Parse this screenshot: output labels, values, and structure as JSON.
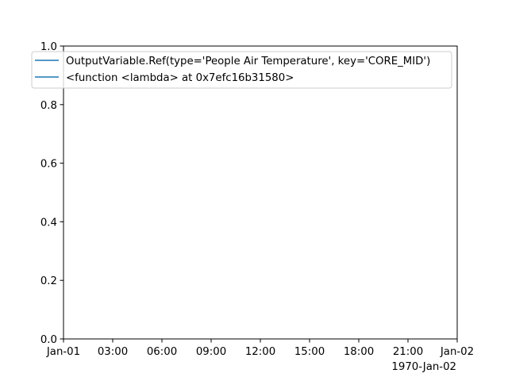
{
  "chart_data": {
    "type": "line",
    "title": "",
    "xlabel": "",
    "ylabel": "",
    "x_ticks": [
      "Jan-01",
      "03:00",
      "06:00",
      "09:00",
      "12:00",
      "15:00",
      "18:00",
      "21:00",
      "Jan-02"
    ],
    "x_offset_label": "1970-Jan-02",
    "xlim": [
      "1970-01-01 00:00",
      "1970-01-02 00:00"
    ],
    "ylim": [
      0.0,
      1.0
    ],
    "y_ticks": [
      "0.0",
      "0.2",
      "0.4",
      "0.6",
      "0.8",
      "1.0"
    ],
    "y_tick_values": [
      0.0,
      0.2,
      0.4,
      0.6,
      0.8,
      1.0
    ],
    "grid": false,
    "legend_position": "top",
    "series": [
      {
        "name": "OutputVariable.Ref(type='People Air Temperature', key='CORE_MID')",
        "color": "#1f77b4",
        "values": []
      },
      {
        "name": "<function <lambda> at 0x7efc16b31580>",
        "color": "#1f77b4",
        "values": []
      }
    ]
  }
}
